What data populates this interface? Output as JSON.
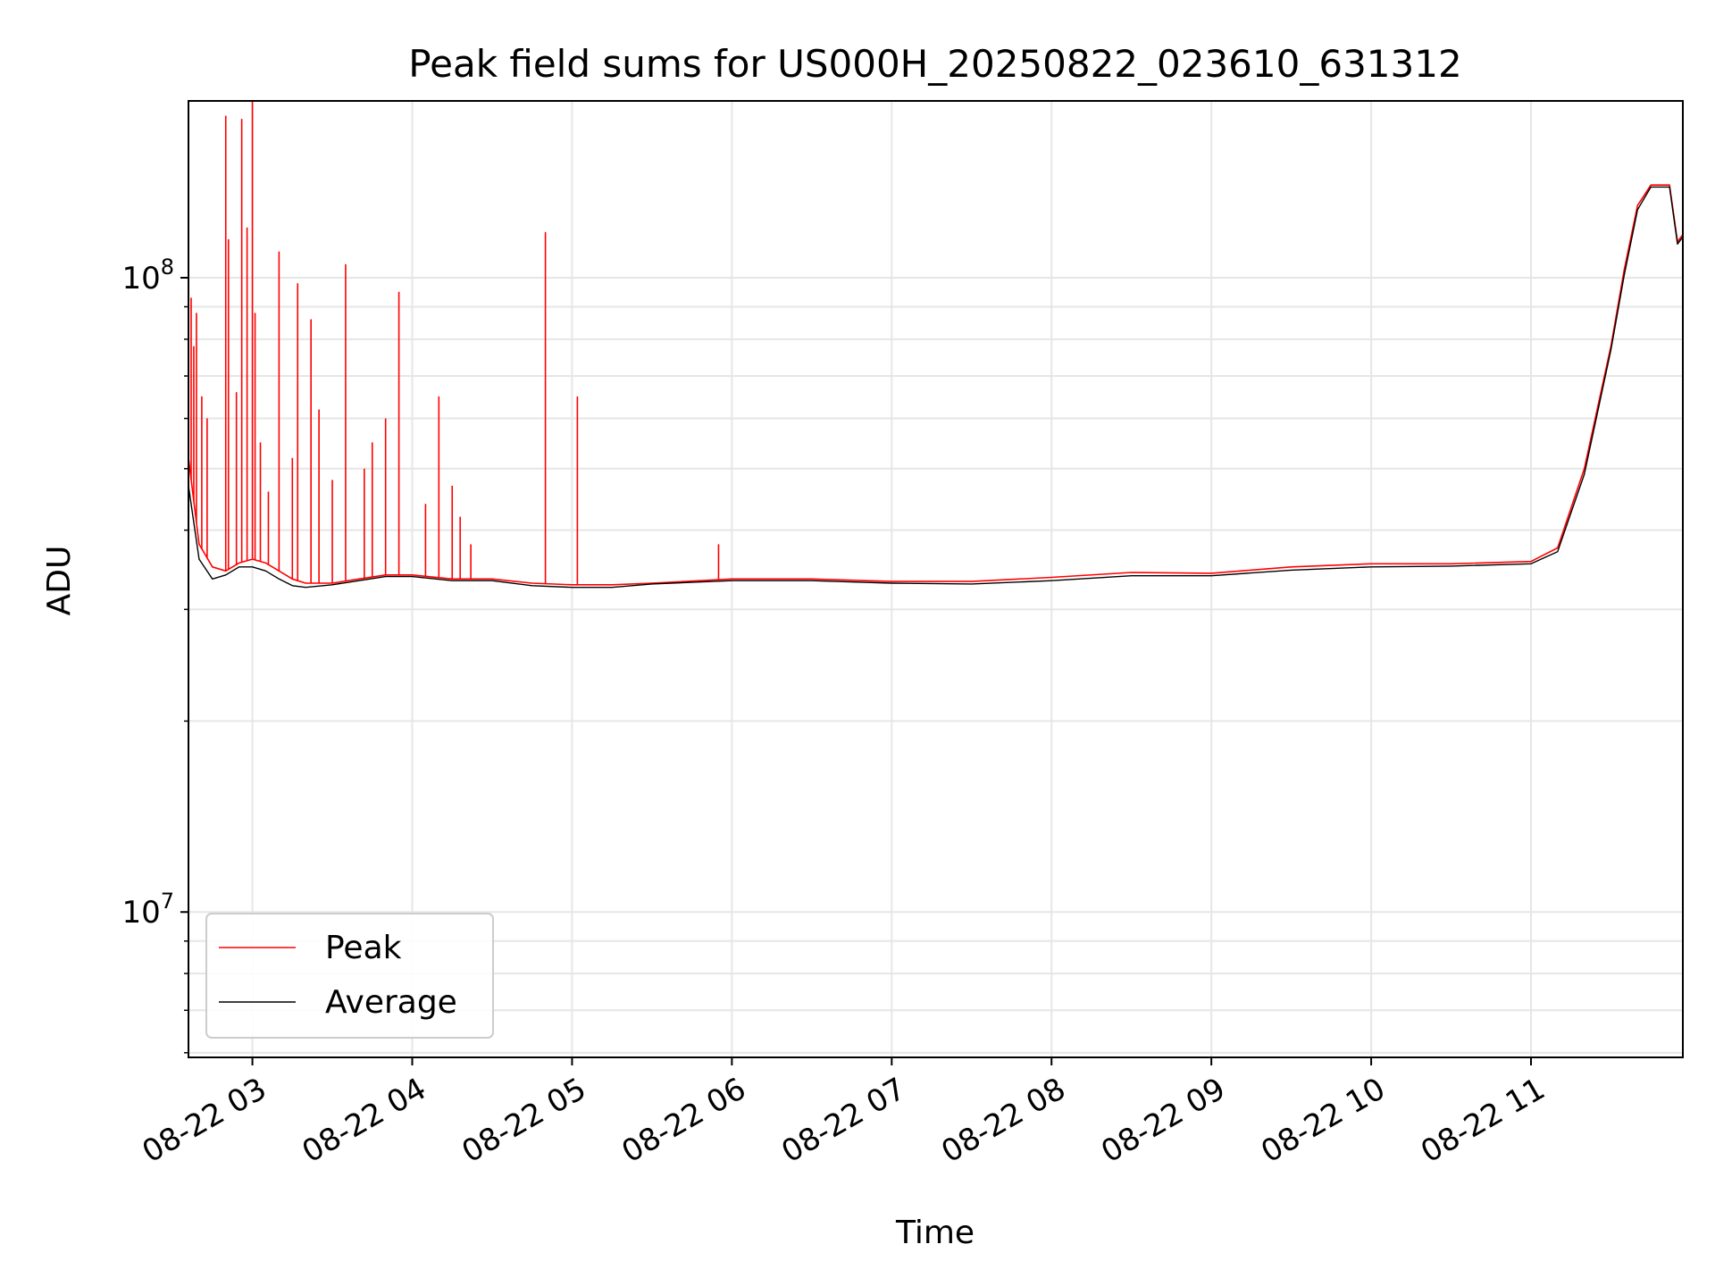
{
  "chart_data": {
    "type": "line",
    "title": "Peak field sums for US000H_20250822_023610_631312",
    "xlabel": "Time",
    "ylabel": "ADU",
    "y_scale": "log",
    "ylim": [
      5900000,
      190000000
    ],
    "xlim": [
      "08-22 02:36",
      "08-22 11:57"
    ],
    "grid": true,
    "legend_position": "lower-left",
    "x_ticks": [
      "08-22 03",
      "08-22 04",
      "08-22 05",
      "08-22 06",
      "08-22 07",
      "08-22 08",
      "08-22 09",
      "08-22 10",
      "08-22 11"
    ],
    "y_ticks": [
      {
        "value": 10000000,
        "base": "10",
        "exp": "7"
      },
      {
        "value": 100000000,
        "base": "10",
        "exp": "8"
      }
    ],
    "series": [
      {
        "name": "Peak",
        "color": "#ff0000",
        "x": [
          "08-22 02:36",
          "08-22 02:40",
          "08-22 02:45",
          "08-22 02:50",
          "08-22 02:55",
          "08-22 03:00",
          "08-22 03:05",
          "08-22 03:10",
          "08-22 03:15",
          "08-22 03:20",
          "08-22 03:30",
          "08-22 03:40",
          "08-22 03:50",
          "08-22 04:00",
          "08-22 04:15",
          "08-22 04:30",
          "08-22 04:45",
          "08-22 05:00",
          "08-22 05:15",
          "08-22 05:30",
          "08-22 06:00",
          "08-22 06:30",
          "08-22 07:00",
          "08-22 07:30",
          "08-22 08:00",
          "08-22 08:30",
          "08-22 09:00",
          "08-22 09:30",
          "08-22 10:00",
          "08-22 10:30",
          "08-22 11:00",
          "08-22 11:10",
          "08-22 11:20",
          "08-22 11:30",
          "08-22 11:35",
          "08-22 11:40",
          "08-22 11:45",
          "08-22 11:48",
          "08-22 11:52",
          "08-22 11:55",
          "08-22 11:57"
        ],
        "y": [
          52000000,
          38000000,
          35000000,
          34500000,
          35500000,
          36000000,
          35500000,
          34500000,
          33500000,
          33000000,
          33000000,
          33500000,
          34000000,
          34000000,
          33500000,
          33500000,
          33000000,
          32800000,
          32800000,
          33000000,
          33500000,
          33500000,
          33200000,
          33200000,
          33700000,
          34300000,
          34200000,
          35000000,
          35400000,
          35400000,
          35700000,
          37500000,
          50000000,
          78000000,
          103000000,
          130000000,
          140000000,
          140000000,
          140000000,
          114000000,
          117000000
        ]
      },
      {
        "name": "Average",
        "color": "#000000",
        "x": [
          "08-22 02:36",
          "08-22 02:40",
          "08-22 02:45",
          "08-22 02:50",
          "08-22 02:55",
          "08-22 03:00",
          "08-22 03:05",
          "08-22 03:10",
          "08-22 03:15",
          "08-22 03:20",
          "08-22 03:30",
          "08-22 03:40",
          "08-22 03:50",
          "08-22 04:00",
          "08-22 04:15",
          "08-22 04:30",
          "08-22 04:45",
          "08-22 05:00",
          "08-22 05:15",
          "08-22 05:30",
          "08-22 06:00",
          "08-22 06:30",
          "08-22 07:00",
          "08-22 07:30",
          "08-22 08:00",
          "08-22 08:30",
          "08-22 09:00",
          "08-22 09:30",
          "08-22 10:00",
          "08-22 10:30",
          "08-22 11:00",
          "08-22 11:10",
          "08-22 11:20",
          "08-22 11:30",
          "08-22 11:35",
          "08-22 11:40",
          "08-22 11:45",
          "08-22 11:48",
          "08-22 11:52",
          "08-22 11:55",
          "08-22 11:57"
        ],
        "y": [
          47000000,
          36000000,
          33500000,
          34000000,
          35000000,
          35000000,
          34500000,
          33500000,
          32700000,
          32500000,
          32800000,
          33300000,
          33800000,
          33800000,
          33300000,
          33300000,
          32700000,
          32500000,
          32500000,
          32900000,
          33300000,
          33300000,
          33000000,
          32900000,
          33300000,
          33900000,
          33900000,
          34600000,
          35000000,
          35100000,
          35400000,
          37000000,
          49000000,
          77000000,
          101000000,
          128000000,
          139000000,
          139000000,
          139000000,
          113000000,
          116000000
        ]
      }
    ],
    "spikes": {
      "series": "Peak",
      "x": [
        "08-22 02:37",
        "08-22 02:38",
        "08-22 02:39",
        "08-22 02:41",
        "08-22 02:43",
        "08-22 02:50",
        "08-22 02:51",
        "08-22 02:54",
        "08-22 02:56",
        "08-22 02:58",
        "08-22 03:00",
        "08-22 03:01",
        "08-22 03:03",
        "08-22 03:06",
        "08-22 03:10",
        "08-22 03:15",
        "08-22 03:17",
        "08-22 03:22",
        "08-22 03:25",
        "08-22 03:30",
        "08-22 03:35",
        "08-22 03:42",
        "08-22 03:45",
        "08-22 03:50",
        "08-22 03:55",
        "08-22 04:05",
        "08-22 04:10",
        "08-22 04:15",
        "08-22 04:18",
        "08-22 04:22",
        "08-22 04:50",
        "08-22 05:02",
        "08-22 05:55"
      ],
      "y": [
        93000000,
        78000000,
        88000000,
        65000000,
        60000000,
        180000000,
        115000000,
        66000000,
        178000000,
        120000000,
        190000000,
        88000000,
        55000000,
        46000000,
        110000000,
        52000000,
        98000000,
        86000000,
        62000000,
        48000000,
        105000000,
        50000000,
        55000000,
        60000000,
        95000000,
        44000000,
        65000000,
        47000000,
        42000000,
        38000000,
        118000000,
        65000000,
        38000000
      ]
    }
  }
}
